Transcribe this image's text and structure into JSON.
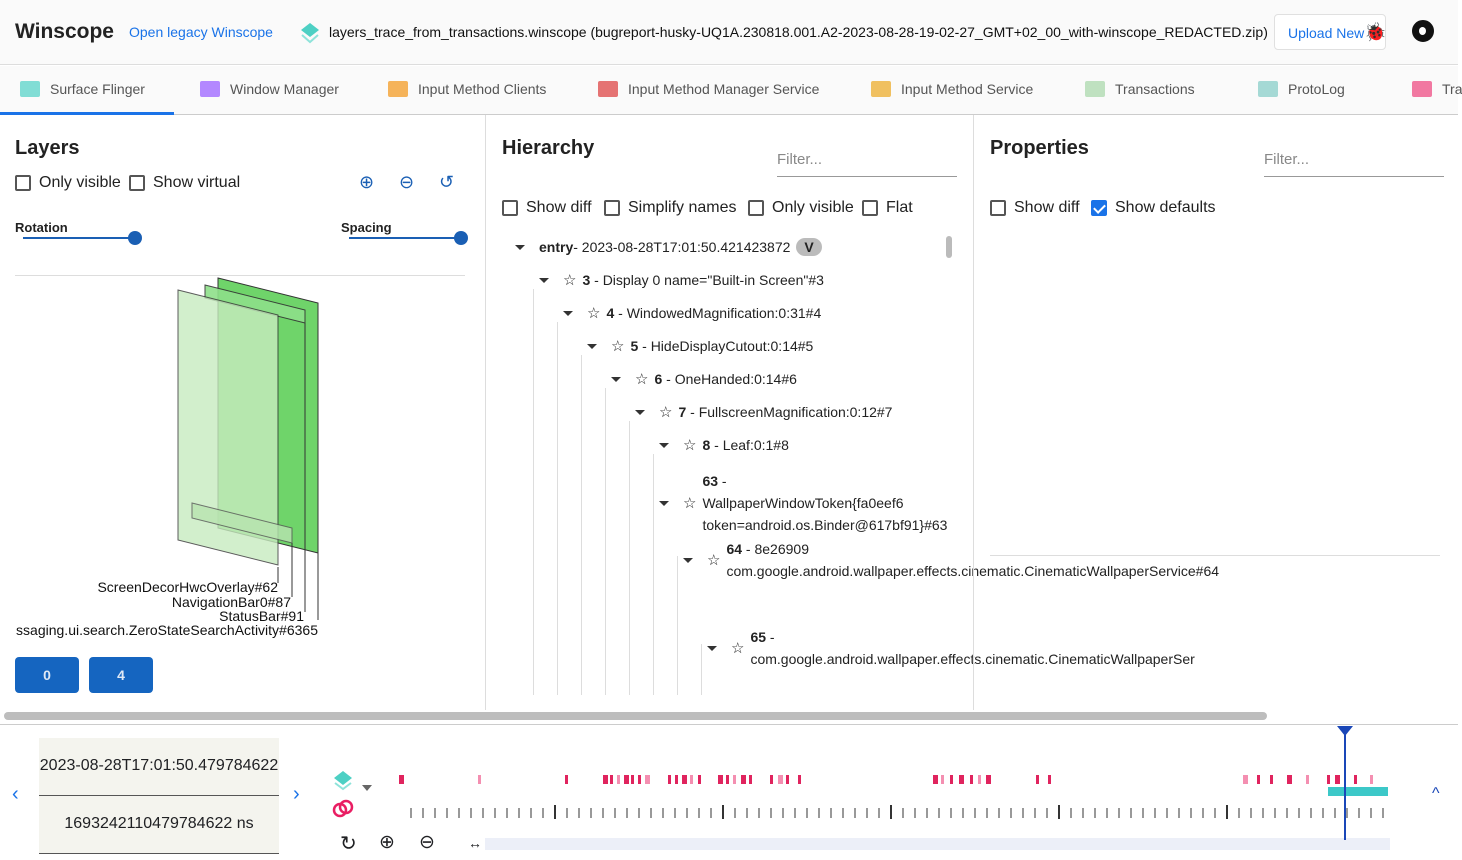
{
  "header": {
    "title": "Winscope",
    "legacy_link": "Open legacy Winscope",
    "trace_file": "layers_trace_from_transactions.winscope (bugreport-husky-UQ1A.230818.001.A2-2023-08-28-19-02-27_GMT+02_00_with-winscope_REDACTED.zip)",
    "upload_label": "Upload New"
  },
  "tabs": [
    {
      "label": "Surface Flinger",
      "icon": "layers-icon",
      "color": "#4dd0c4"
    },
    {
      "label": "Window Manager",
      "icon": "window-icon",
      "color": "#b388ff"
    },
    {
      "label": "Input Method Clients",
      "icon": "keyboard-icon",
      "color": "#f5b35a"
    },
    {
      "label": "Input Method Manager Service",
      "icon": "keyboard-icon",
      "color": "#e57373"
    },
    {
      "label": "Input Method Service",
      "icon": "keyboard-icon",
      "color": "#f0c060"
    },
    {
      "label": "Transactions",
      "icon": "chart-line-icon",
      "color": "#a5d6a7"
    },
    {
      "label": "ProtoLog",
      "icon": "list-icon",
      "color": "#80cbc4"
    },
    {
      "label": "Tra",
      "icon": "rings-icon",
      "color": "#ec407a"
    }
  ],
  "layers": {
    "title": "Layers",
    "only_visible": "Only visible",
    "show_virtual": "Show virtual",
    "rotation": "Rotation",
    "spacing": "Spacing",
    "rotation_value": 1.0,
    "spacing_value": 1.0,
    "labels": [
      "ScreenDecorHwcOverlay#62",
      "NavigationBar0#87",
      "StatusBar#91",
      "ssaging.ui.search.ZeroStateSearchActivity#6365"
    ],
    "display_buttons": [
      "0",
      "4"
    ]
  },
  "hierarchy": {
    "title": "Hierarchy",
    "filter_placeholder": "Filter...",
    "show_diff": "Show diff",
    "simplify_names": "Simplify names",
    "only_visible": "Only visible",
    "flat": "Flat",
    "entry": {
      "name": "entry",
      "ts": " - 2023-08-28T17:01:50.421423872",
      "chip": "V"
    },
    "nodes": [
      {
        "id": "3",
        "name": " - Display 0 name=\"Built-in Screen\"#3"
      },
      {
        "id": "4",
        "name": " - WindowedMagnification:0:31#4"
      },
      {
        "id": "5",
        "name": " - HideDisplayCutout:0:14#5"
      },
      {
        "id": "6",
        "name": " - OneHanded:0:14#6"
      },
      {
        "id": "7",
        "name": " - FullscreenMagnification:0:12#7"
      },
      {
        "id": "8",
        "name": " - Leaf:0:1#8"
      },
      {
        "id": "63",
        "name": " - WallpaperWindowToken{fa0eef6 token=android.os.Binder@617bf91}#63"
      },
      {
        "id": "64",
        "name": " - 8e26909 com.google.android.wallpaper.effects.cinematic.CinematicWallpaperService#64"
      },
      {
        "id": "65",
        "name": " - com.google.android.wallpaper.effects.cinematic.CinematicWallpaperSer"
      }
    ]
  },
  "properties": {
    "title": "Properties",
    "filter_placeholder": "Filter...",
    "show_diff": "Show diff",
    "show_defaults": "Show defaults",
    "show_defaults_checked": true
  },
  "timeline": {
    "timestamp": "2023-08-28T17:01:50.479784622",
    "timestamp_ns": "1693242110479784622 ns"
  }
}
